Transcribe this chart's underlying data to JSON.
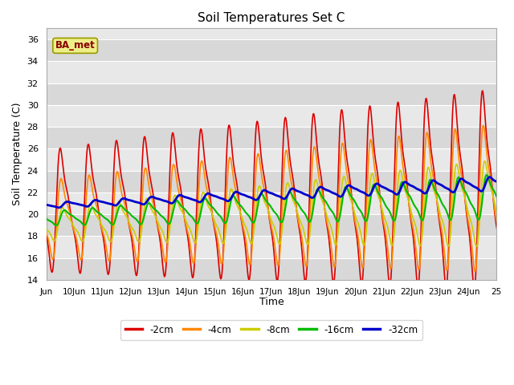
{
  "title": "Soil Temperatures Set C",
  "xlabel": "Time",
  "ylabel": "Soil Temperature (C)",
  "ylim": [
    14,
    37
  ],
  "yticks": [
    14,
    16,
    18,
    20,
    22,
    24,
    26,
    28,
    30,
    32,
    34,
    36
  ],
  "plot_bg_color": "#e8e8e8",
  "legend_labels": [
    "-2cm",
    "-4cm",
    "-8cm",
    "-16cm",
    "-32cm"
  ],
  "legend_colors": [
    "#dd0000",
    "#ff8800",
    "#cccc00",
    "#00bb00",
    "#0000cc"
  ],
  "line_widths": [
    1.2,
    1.2,
    1.2,
    1.5,
    2.0
  ],
  "annotation_text": "BA_met",
  "xtick_labels": [
    "Jun",
    "10Jun",
    "11Jun",
    "12Jun",
    "13Jun",
    "14Jun",
    "15Jun",
    "16Jun",
    "17Jun",
    "18Jun",
    "19Jun",
    "20Jun",
    "21Jun",
    "22Jun",
    "23Jun",
    "24Jun",
    "25"
  ],
  "days": 16,
  "n_points": 960
}
